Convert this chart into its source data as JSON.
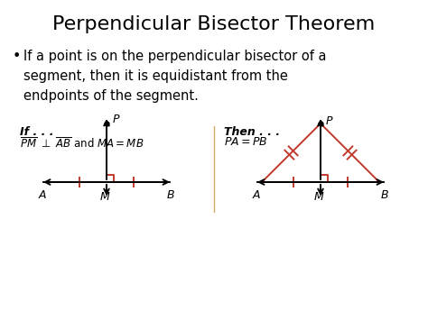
{
  "title": "Perpendicular Bisector Theorem",
  "bullet_text": "If a point is on the perpendicular bisector of a\nsegment, then it is equidistant from the\nendpoints of the segment.",
  "if_label": "If . . .",
  "then_label": "Then . . .",
  "background_color": "#ffffff",
  "line_color": "#000000",
  "orange_color": "#c0392b",
  "divider_color": "#d4a96a",
  "title_fontsize": 16,
  "bullet_fontsize": 10.5,
  "label_fontsize": 9,
  "formula_fontsize": 8.5
}
